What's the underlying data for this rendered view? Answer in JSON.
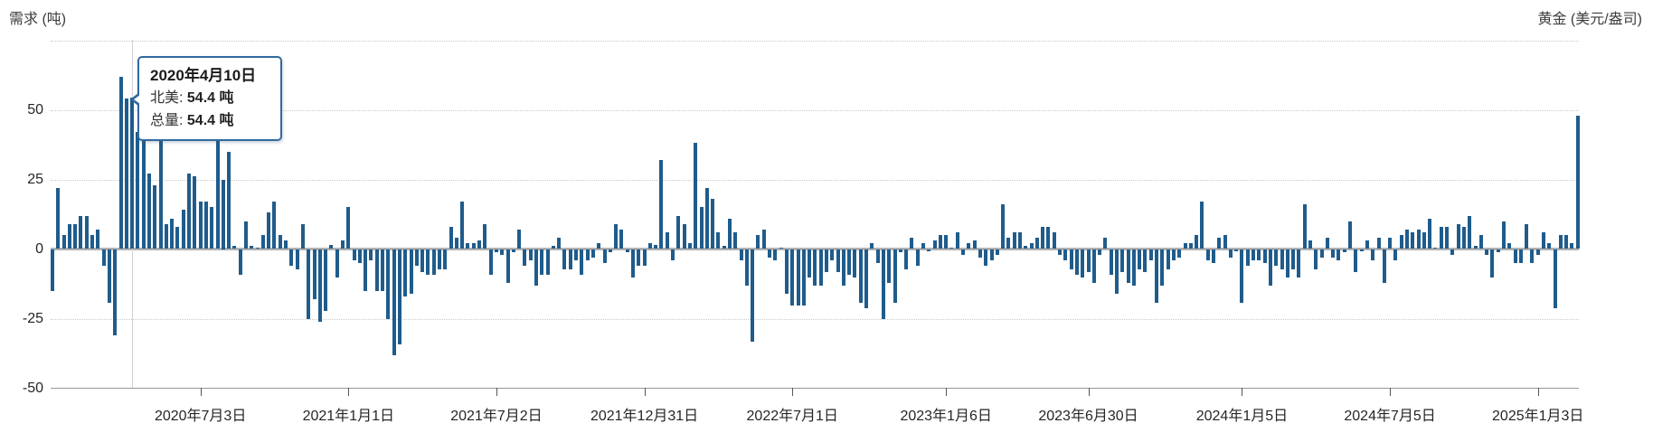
{
  "header": {
    "left_axis_title": "需求 (吨)",
    "right_axis_title": "黄金 (美元/盎司)"
  },
  "axes": {
    "y_gridline_values": [
      75,
      50,
      25,
      -25
    ],
    "y_ticks": [
      {
        "label": "50",
        "value": 50
      },
      {
        "label": "25",
        "value": 25
      },
      {
        "label": "0",
        "value": 0
      },
      {
        "label": "-25",
        "value": -25
      },
      {
        "label": "-50",
        "value": -50
      }
    ],
    "x_ticks": [
      {
        "label": "2020年7月3日",
        "week": 26
      },
      {
        "label": "2021年1月1日",
        "week": 52
      },
      {
        "label": "2021年7月2日",
        "week": 78
      },
      {
        "label": "2021年12月31日",
        "week": 104
      },
      {
        "label": "2022年7月1日",
        "week": 130
      },
      {
        "label": "2023年1月6日",
        "week": 157
      },
      {
        "label": "2023年6月30日",
        "week": 182
      },
      {
        "label": "2024年1月5日",
        "week": 209
      },
      {
        "label": "2024年7月5日",
        "week": 235
      },
      {
        "label": "2025年1月3日",
        "week": 261
      }
    ]
  },
  "tooltip": {
    "title": "2020年4月10日",
    "rows": [
      {
        "label": "北美: ",
        "value": "54.4 吨"
      },
      {
        "label": "总量: ",
        "value": "54.4 吨"
      }
    ],
    "hover_week": 14
  },
  "colors": {
    "bar": "#1f5c8c",
    "grid": "#c9c9c9",
    "zero_line": "#b0b0b0",
    "axis_line": "#979797",
    "crosshair": "#d2d2d2",
    "tooltip_border": "#306a9e"
  },
  "chart_data": {
    "type": "bar",
    "title": "",
    "ylabel_left": "需求 (吨)",
    "ylabel_right": "黄金 (美元/盎司)",
    "ylim": [
      -50,
      75
    ],
    "y_tick_labels": [
      "50",
      "25",
      "0",
      "-25",
      "-50"
    ],
    "x_tick_labels": [
      "2020年7月3日",
      "2021年1月1日",
      "2021年7月2日",
      "2021年12月31日",
      "2022年7月1日",
      "2023年1月6日",
      "2023年6月30日",
      "2024年1月5日",
      "2024年7月5日",
      "2025年1月3日"
    ],
    "x_unit": "week",
    "legend_position": "none",
    "grid": "dotted-horizontal",
    "highlighted_point": {
      "index": 14,
      "date": "2020年4月10日",
      "series": "北美",
      "value": 54.4,
      "total": 54.4
    },
    "series": [
      {
        "name": "北美",
        "values": [
          -15,
          22,
          5,
          9,
          9,
          12,
          12,
          5,
          7,
          -6,
          -19,
          -31,
          62,
          54,
          54.4,
          42,
          40,
          27,
          23,
          40,
          9,
          11,
          8,
          14,
          27,
          26,
          17,
          17,
          15,
          39,
          25,
          35,
          1,
          -9,
          10,
          1,
          0.5,
          5,
          13,
          17,
          5,
          3,
          -6,
          -7,
          9,
          -25,
          -18,
          -26,
          -22,
          1.5,
          -10,
          3,
          15,
          -4,
          -5,
          -15,
          -4,
          -15,
          -15,
          -25,
          -38,
          -34,
          -17,
          -16,
          -6,
          -8,
          -9,
          -9,
          -7,
          -7,
          8,
          4,
          17,
          2,
          2,
          3,
          9,
          -9,
          -1,
          -2,
          -12,
          -1,
          7,
          -6,
          -4,
          -13,
          -9,
          -9,
          1,
          4,
          -7,
          -7,
          -4,
          -9,
          -4,
          -3,
          2,
          -5,
          -1,
          9,
          7,
          -1,
          -10,
          -6,
          -6,
          2,
          1.5,
          32,
          6,
          -4,
          12,
          9,
          2,
          38,
          15,
          22,
          18,
          6,
          1,
          11,
          6,
          -4,
          -13,
          -33,
          5,
          7,
          -3,
          -4,
          0.5,
          -16,
          -20,
          -20,
          -20,
          -10,
          -13,
          -13,
          -8,
          -4,
          -8,
          -13,
          -9,
          -10,
          -19,
          -21,
          2,
          -5,
          -25,
          -12,
          -19,
          -1,
          -7,
          4,
          -6,
          2,
          -0.5,
          3,
          5,
          5,
          0.5,
          6,
          -2,
          2,
          3,
          -3,
          -6,
          -4,
          -2,
          16,
          4,
          6,
          6,
          1,
          2,
          4,
          8,
          8,
          6,
          -2,
          -4,
          -7,
          -9,
          -10,
          -8,
          -12,
          -2,
          4,
          -9,
          -16,
          -8,
          -12,
          -13,
          -7,
          -8,
          -4,
          -19,
          -13,
          -7,
          -4,
          -3,
          2,
          2,
          5,
          17,
          -4,
          -5,
          4,
          5,
          -3,
          -0.5,
          -19,
          -6,
          -4,
          -4,
          -5,
          -13,
          -6,
          -7,
          -10,
          -7,
          -10,
          16,
          3,
          -7,
          -3,
          4,
          -3,
          -4,
          -1,
          10,
          -8,
          -0.5,
          3,
          -4,
          4,
          -12,
          4,
          -4,
          5,
          7,
          6,
          7,
          6,
          11,
          0.5,
          8,
          8,
          -2,
          9,
          8,
          12,
          1,
          5,
          -2,
          -10,
          -1,
          10,
          2,
          -5,
          -5,
          9,
          -5,
          -2,
          6,
          2,
          -21,
          5,
          5,
          2,
          48
        ]
      }
    ]
  }
}
